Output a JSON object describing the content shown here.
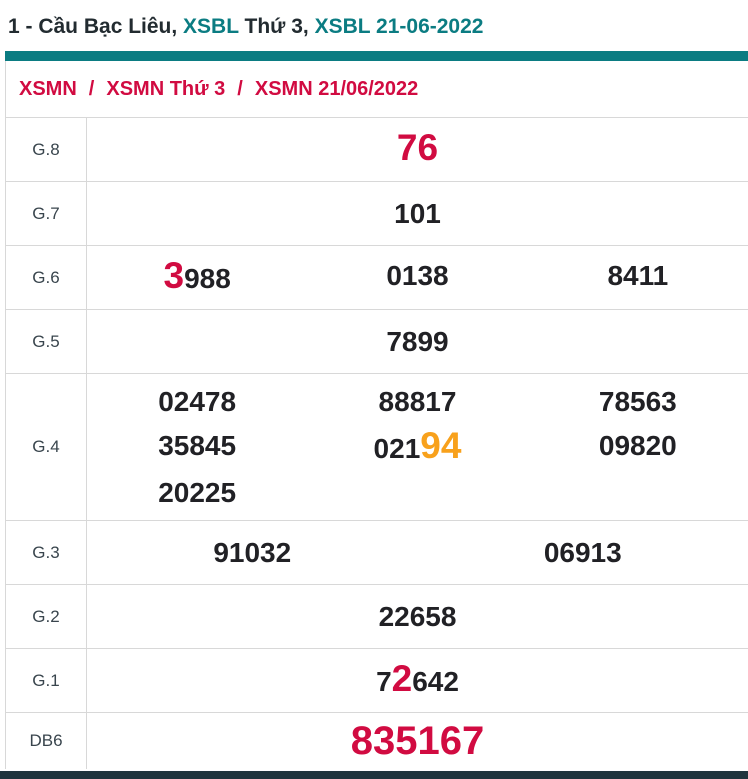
{
  "colors": {
    "teal": "#0b7c82",
    "red": "#d10b41",
    "orange": "#f8a11c",
    "dark_text": "#222b30",
    "number": "#212125",
    "label": "#39454d",
    "border": "#d8d8d8",
    "bottom_bar": "#1f343d"
  },
  "title": {
    "parts": [
      {
        "text": "1 - Cầu Bạc Liêu, ",
        "color": "dark"
      },
      {
        "text": "XSBL",
        "color": "teal"
      },
      {
        "text": " Thứ 3, ",
        "color": "dark"
      },
      {
        "text": "XSBL 21-06-2022",
        "color": "teal"
      }
    ]
  },
  "breadcrumb": {
    "separator": "/",
    "items": [
      {
        "label": "XSMN"
      },
      {
        "label": "XSMN Thứ 3"
      },
      {
        "label": "XSMN 21/06/2022"
      }
    ]
  },
  "results_table": {
    "rows": [
      {
        "label": "G.8",
        "cols": 1,
        "lines": [
          [
            [
              {
                "t": "76",
                "c": "red",
                "big": true
              }
            ]
          ]
        ]
      },
      {
        "label": "G.7",
        "cols": 1,
        "lines": [
          [
            [
              {
                "t": "101"
              }
            ]
          ]
        ]
      },
      {
        "label": "G.6",
        "cols": 3,
        "lines": [
          [
            [
              {
                "t": "3",
                "c": "red",
                "big": true
              },
              {
                "t": "988"
              }
            ],
            [
              {
                "t": "0138"
              }
            ],
            [
              {
                "t": "8411"
              }
            ]
          ]
        ]
      },
      {
        "label": "G.5",
        "cols": 1,
        "lines": [
          [
            [
              {
                "t": "7899"
              }
            ]
          ]
        ]
      },
      {
        "label": "G.4",
        "cols": 3,
        "lines": [
          [
            [
              {
                "t": "02478"
              }
            ],
            [
              {
                "t": "88817"
              }
            ],
            [
              {
                "t": "78563"
              }
            ]
          ],
          [
            [
              {
                "t": "35845"
              }
            ],
            [
              {
                "t": "021"
              },
              {
                "t": "94",
                "c": "orange",
                "big": true
              }
            ],
            [
              {
                "t": "09820"
              }
            ]
          ],
          [
            [
              {
                "t": "20225"
              }
            ],
            [],
            []
          ]
        ]
      },
      {
        "label": "G.3",
        "cols": 2,
        "lines": [
          [
            [
              {
                "t": "91032"
              }
            ],
            [
              {
                "t": "06913"
              }
            ]
          ]
        ]
      },
      {
        "label": "G.2",
        "cols": 1,
        "lines": [
          [
            [
              {
                "t": "22658"
              }
            ]
          ]
        ]
      },
      {
        "label": "G.1",
        "cols": 1,
        "lines": [
          [
            [
              {
                "t": "7"
              },
              {
                "t": "2",
                "c": "red",
                "big": true
              },
              {
                "t": "642"
              }
            ]
          ]
        ]
      },
      {
        "label": "DB6",
        "cols": 1,
        "xl": true,
        "lines": [
          [
            [
              {
                "t": "835167",
                "c": "red"
              }
            ]
          ]
        ]
      }
    ]
  }
}
